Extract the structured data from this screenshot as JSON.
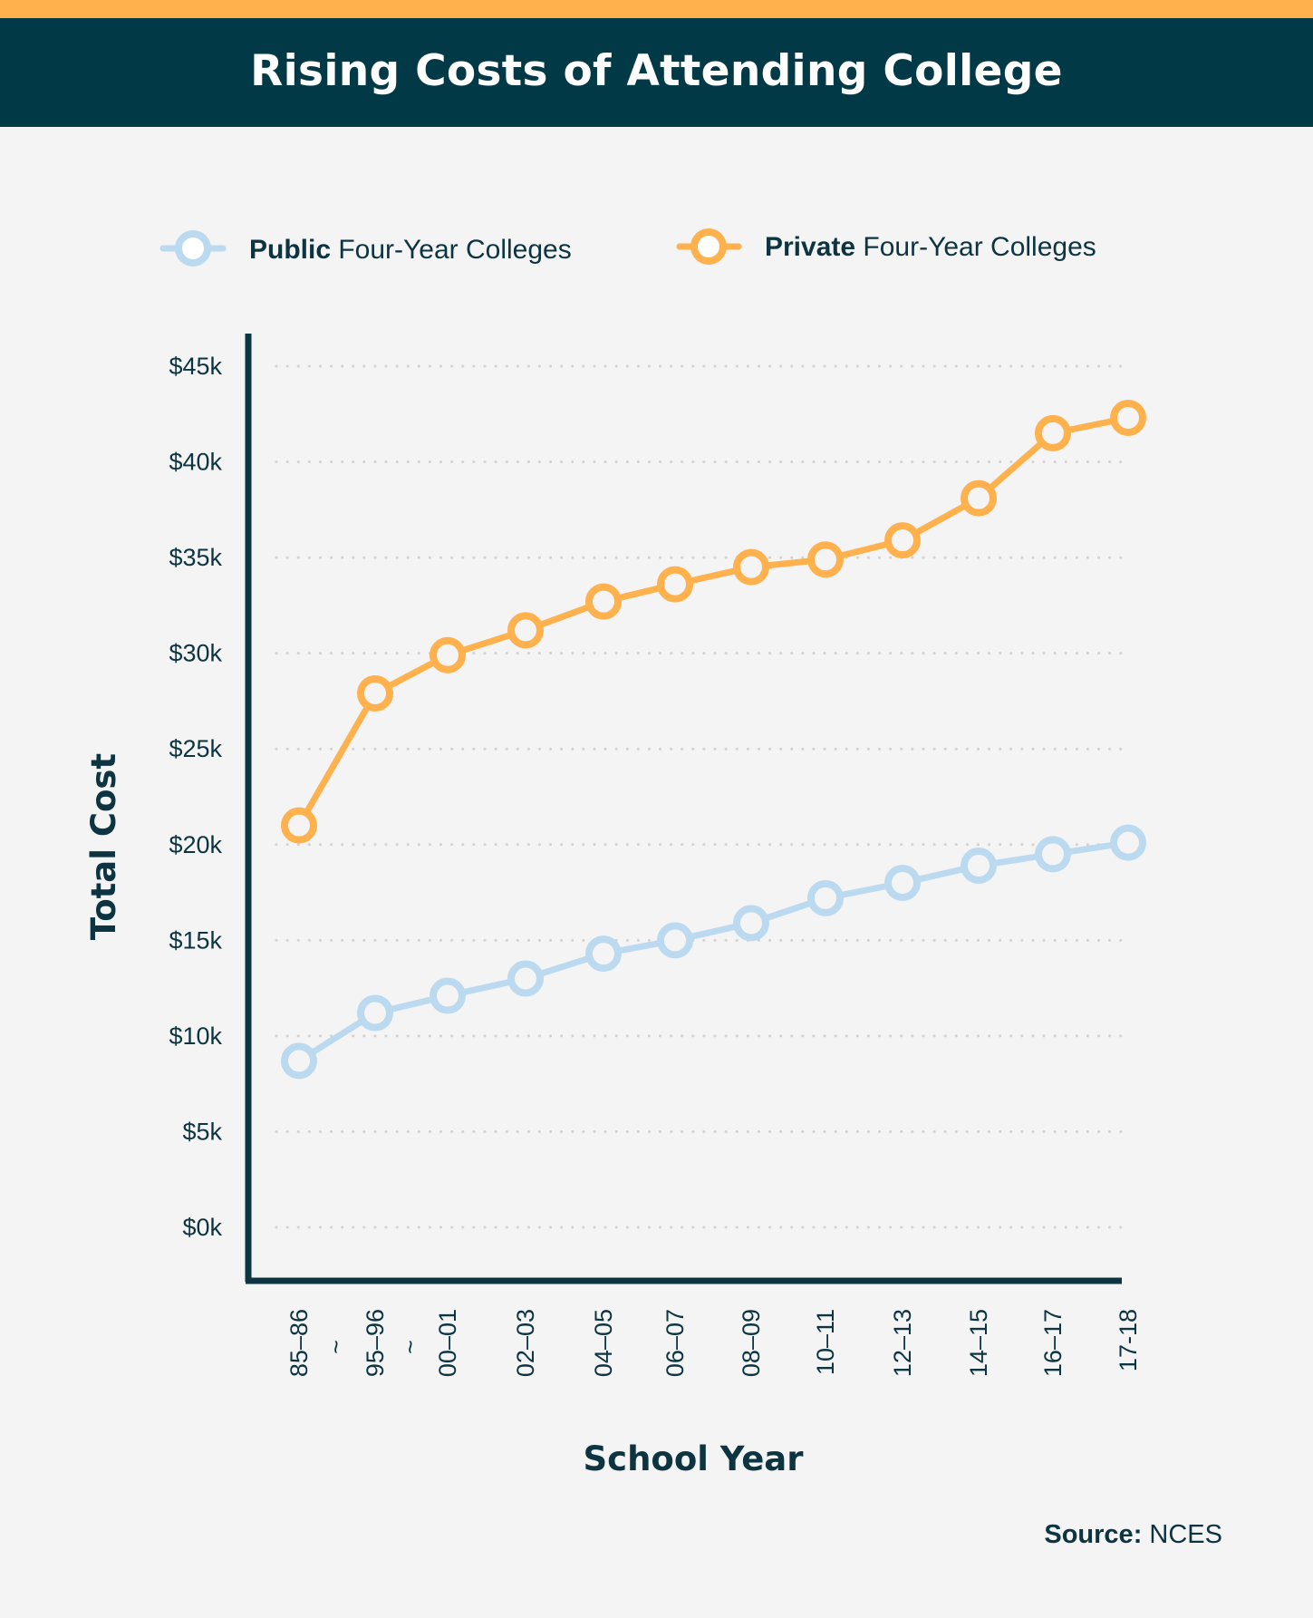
{
  "page": {
    "title": "Rising Costs of Attending College",
    "colors": {
      "background": "#f4f4f4",
      "header": "#023947",
      "accent_bar": "#ffb14e",
      "text": "#0d3441",
      "grid": "#d2d2d2"
    }
  },
  "legend": {
    "items": [
      {
        "bold": "Public",
        "rest": " Four-Year Colleges",
        "color": "#bcdaef"
      },
      {
        "bold": "Private",
        "rest": " Four-Year Colleges",
        "color": "#ffb14e"
      }
    ]
  },
  "source": {
    "label": "Source:",
    "value": " NCES"
  },
  "chart_data": {
    "type": "line",
    "title": "Rising Costs of Attending College",
    "xlabel": "School Year",
    "ylabel": "Total Cost",
    "categories": [
      "85–86",
      "95–96",
      "00–01",
      "02–03",
      "04–05",
      "06–07",
      "08–09",
      "10–11",
      "12–13",
      "14–15",
      "16–17",
      "17-18"
    ],
    "axis_break_marks": [
      "~",
      "~"
    ],
    "y_ticks": [
      0,
      5000,
      10000,
      15000,
      20000,
      25000,
      30000,
      35000,
      40000,
      45000
    ],
    "y_tick_labels": [
      "$0k",
      "$5k",
      "$10k",
      "$15k",
      "$20k",
      "$25k",
      "$30k",
      "$35k",
      "$40k",
      "$45k"
    ],
    "ylim": [
      0,
      45000
    ],
    "grid": true,
    "legend_position": "top",
    "series": [
      {
        "name": "Public Four-Year Colleges",
        "color": "#bcdaef",
        "values": [
          8700,
          11200,
          12100,
          13000,
          14300,
          15000,
          15900,
          17200,
          18000,
          18900,
          19500,
          20100
        ]
      },
      {
        "name": "Private Four-Year Colleges",
        "color": "#ffb14e",
        "values": [
          21000,
          27900,
          29900,
          31200,
          32700,
          33600,
          34500,
          34900,
          35900,
          38100,
          41500,
          42300
        ]
      }
    ]
  }
}
